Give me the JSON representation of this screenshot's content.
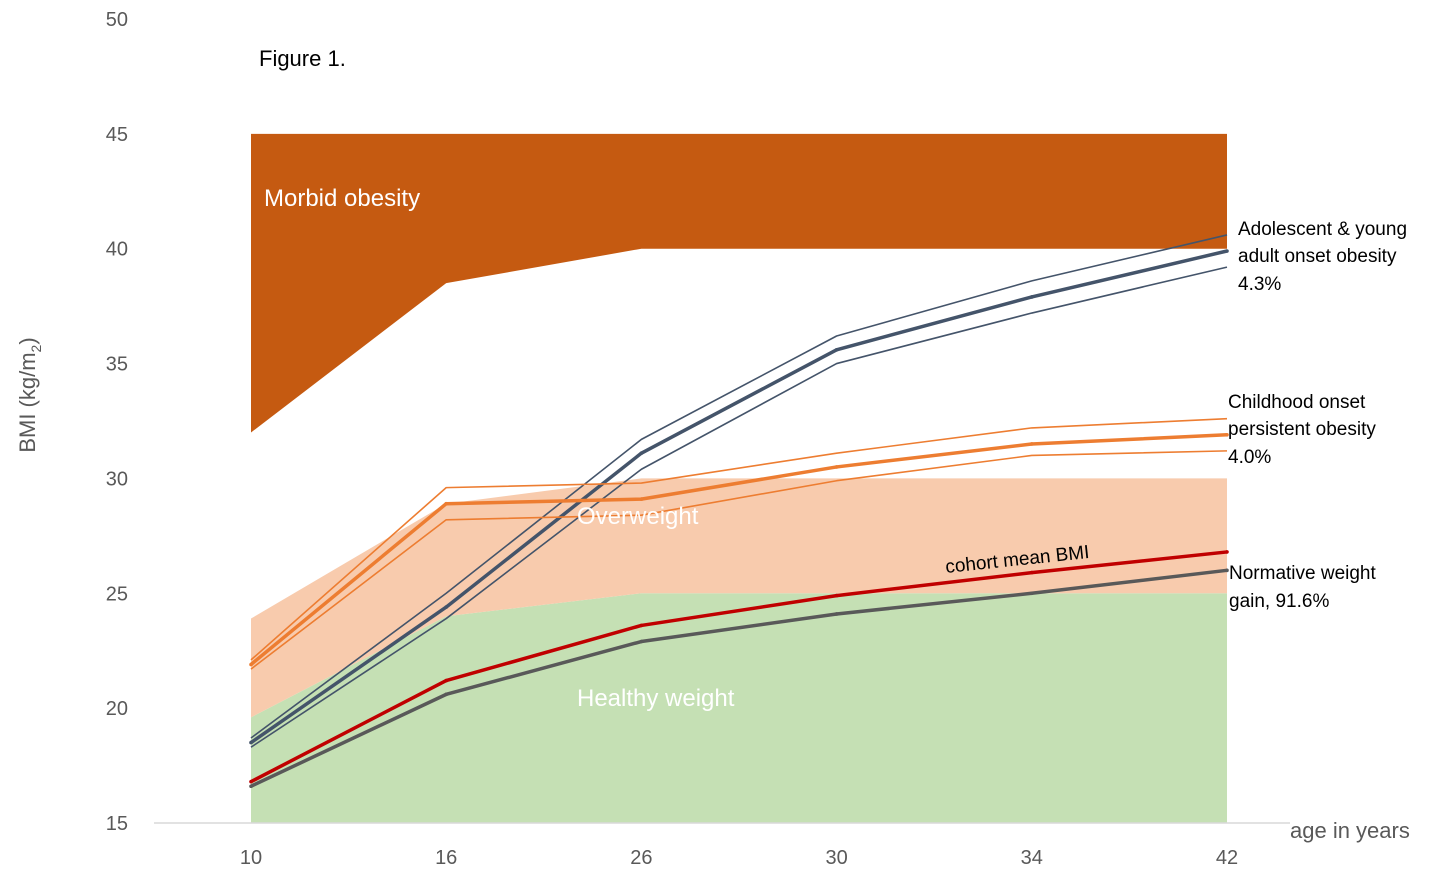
{
  "chart_data": {
    "type": "line",
    "title": "Figure 1.",
    "xlabel": "age in years",
    "ylabel": "BMI (kg/m",
    "ylabel_sub": "2",
    "ylabel_close": ")",
    "categories": [
      "10",
      "16",
      "26",
      "30",
      "34",
      "42"
    ],
    "ylim": [
      15,
      50
    ],
    "yticks": [
      15,
      20,
      25,
      30,
      35,
      40,
      45,
      50
    ],
    "grid": false,
    "bands": [
      {
        "name": "Healthy weight",
        "color": "#c5e0b4",
        "label_color": "#ffffff",
        "lower": [
          15,
          15,
          15,
          15,
          15,
          15
        ],
        "upper": [
          19.6,
          24,
          25,
          25,
          25,
          25
        ]
      },
      {
        "name": "Overweight",
        "color": "#f8cbad",
        "label_color": "#ffffff",
        "lower": [
          19.6,
          24,
          25,
          25,
          25,
          25
        ],
        "upper": [
          23.9,
          28.9,
          30,
          30,
          30,
          30
        ]
      },
      {
        "name": "Morbid obesity",
        "color": "#c55a11",
        "label_color": "#ffffff",
        "lower": [
          32,
          38.5,
          40,
          40,
          40,
          40
        ],
        "upper": [
          45,
          45,
          45,
          45,
          45,
          45
        ]
      }
    ],
    "series": [
      {
        "name": "Adolescent & young adult onset obesity",
        "share": "4.3%",
        "color": "#44546a",
        "values": [
          18.5,
          24.4,
          31.1,
          35.6,
          37.9,
          39.9
        ],
        "upper": [
          18.7,
          25,
          31.7,
          36.2,
          38.6,
          40.6
        ],
        "lower": [
          18.3,
          23.9,
          30.4,
          35,
          37.2,
          39.2
        ]
      },
      {
        "name": "Childhood onset persistent obesity",
        "share": "4.0%",
        "color": "#ed7d31",
        "values": [
          21.9,
          28.9,
          29.1,
          30.5,
          31.5,
          31.9
        ],
        "upper": [
          22.1,
          29.6,
          29.8,
          31.1,
          32.2,
          32.6
        ],
        "lower": [
          21.7,
          28.2,
          28.4,
          29.9,
          31,
          31.2
        ]
      },
      {
        "name": "cohort mean BMI",
        "color": "#c00000",
        "values": [
          16.8,
          21.2,
          23.6,
          24.9,
          25.9,
          26.8
        ]
      },
      {
        "name": "Normative weight gain",
        "share": "91.6%",
        "color": "#595959",
        "values": [
          16.6,
          20.6,
          22.9,
          24.1,
          25,
          26
        ]
      }
    ],
    "annotations": {
      "adolescent_line1": "Adolescent & young",
      "adolescent_line2": "adult onset obesity",
      "adolescent_pct": "4.3%",
      "childhood_line1": "Childhood onset",
      "childhood_line2": "persistent obesity",
      "childhood_pct": "4.0%",
      "cohort_mean": "cohort mean BMI",
      "normative_line1": "Normative weight",
      "normative_line2": "gain, 91.6%"
    }
  }
}
